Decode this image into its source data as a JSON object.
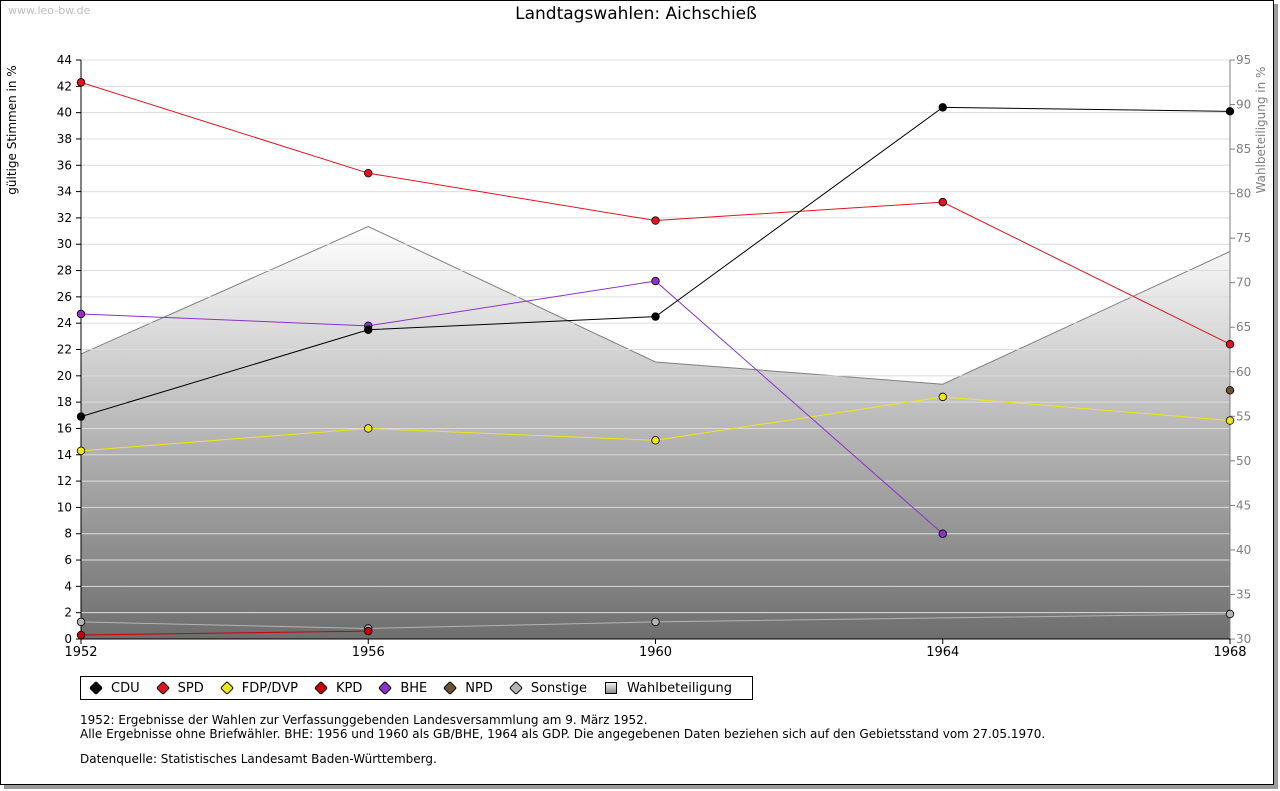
{
  "watermark": "www.leo-bw.de",
  "notes": {
    "line1": "1952: Ergebnisse der Wahlen zur Verfassunggebenden Landesversammlung am 9. März 1952.",
    "line2": "Alle Ergebnisse ohne Briefwähler. BHE: 1956 und 1960 als GB/BHE, 1964 als GDP. Die angegebenen Daten beziehen sich auf den Gebietsstand vom 27.05.1970.",
    "source": "Datenquelle: Statistisches Landesamt Baden-Württemberg."
  },
  "chart_data": {
    "type": "line",
    "title": "Landtagswahlen: Aichschieß",
    "ylabel": "gültige Stimmen in %",
    "y2label": "Wahlbeteiligung in %",
    "x": [
      1952,
      1956,
      1960,
      1964,
      1968
    ],
    "xlim": [
      1952,
      1968
    ],
    "ylim": [
      0,
      44
    ],
    "yticks": [
      0,
      2,
      4,
      6,
      8,
      10,
      12,
      14,
      16,
      18,
      20,
      22,
      24,
      26,
      28,
      30,
      32,
      34,
      36,
      38,
      40,
      42,
      44
    ],
    "y2lim": [
      30,
      95
    ],
    "y2ticks": [
      30,
      35,
      40,
      45,
      50,
      55,
      60,
      65,
      70,
      75,
      80,
      85,
      90,
      95
    ],
    "grid": true,
    "legend_position": "bottom",
    "series": [
      {
        "name": "CDU",
        "color": "#000000",
        "values": [
          16.9,
          23.5,
          24.5,
          40.4,
          40.1
        ]
      },
      {
        "name": "SPD",
        "color": "#e0141e",
        "values": [
          42.3,
          35.4,
          31.8,
          33.2,
          22.4
        ]
      },
      {
        "name": "FDP/DVP",
        "color": "#f0e614",
        "values": [
          14.3,
          16.0,
          15.1,
          18.4,
          16.6
        ]
      },
      {
        "name": "KPD",
        "color": "#c8000a",
        "values": [
          0.3,
          0.6,
          null,
          null,
          null
        ]
      },
      {
        "name": "BHE",
        "color": "#8c32c8",
        "values": [
          24.7,
          23.8,
          27.2,
          8.0,
          null
        ]
      },
      {
        "name": "NPD",
        "color": "#6e5032",
        "values": [
          null,
          null,
          null,
          null,
          18.9
        ]
      },
      {
        "name": "Sonstige",
        "color": "#b4b4b4",
        "values": [
          1.3,
          0.8,
          1.3,
          null,
          1.9
        ]
      },
      {
        "name": "Wahlbeteiligung",
        "color": "#808080",
        "axis": "right",
        "type": "area",
        "values": [
          62,
          76.3,
          61.1,
          58.6,
          73.5
        ]
      }
    ]
  }
}
